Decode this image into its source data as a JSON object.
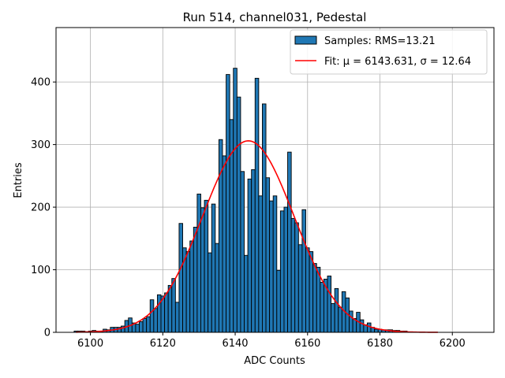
{
  "chart_data": {
    "type": "bar",
    "title": "Run 514, channel031, Pedestal",
    "xlabel": "ADC Counts",
    "ylabel": "Entries",
    "xlim": [
      6090.5,
      6211.5
    ],
    "ylim": [
      0,
      487
    ],
    "xticks": [
      6100,
      6120,
      6140,
      6160,
      6180,
      6200
    ],
    "yticks": [
      0,
      100,
      200,
      300,
      400
    ],
    "grid": true,
    "legend_position": "top-right",
    "bar_color": "#1f77b4",
    "fit_color": "#ff0000",
    "bin_width": 1,
    "series": [
      {
        "name": "Samples: RMS=13.21",
        "kind": "histogram",
        "bins": [
          6096,
          6097,
          6098,
          6099,
          6100,
          6101,
          6102,
          6103,
          6104,
          6105,
          6106,
          6107,
          6108,
          6109,
          6110,
          6111,
          6112,
          6113,
          6114,
          6115,
          6116,
          6117,
          6118,
          6119,
          6120,
          6121,
          6122,
          6123,
          6124,
          6125,
          6126,
          6127,
          6128,
          6129,
          6130,
          6131,
          6132,
          6133,
          6134,
          6135,
          6136,
          6137,
          6138,
          6139,
          6140,
          6141,
          6142,
          6143,
          6144,
          6145,
          6146,
          6147,
          6148,
          6149,
          6150,
          6151,
          6152,
          6153,
          6154,
          6155,
          6156,
          6157,
          6158,
          6159,
          6160,
          6161,
          6162,
          6163,
          6164,
          6165,
          6166,
          6167,
          6168,
          6169,
          6170,
          6171,
          6172,
          6173,
          6174,
          6175,
          6176,
          6177,
          6178,
          6179,
          6180,
          6181,
          6182,
          6183,
          6184,
          6185,
          6186,
          6187
        ],
        "values": [
          2,
          2,
          2,
          1,
          2,
          3,
          2,
          1,
          5,
          4,
          8,
          8,
          8,
          10,
          19,
          23,
          15,
          13,
          17,
          22,
          25,
          52,
          38,
          60,
          58,
          63,
          75,
          86,
          48,
          174,
          135,
          129,
          146,
          168,
          221,
          199,
          211,
          127,
          205,
          142,
          308,
          282,
          412,
          340,
          422,
          376,
          257,
          123,
          245,
          260,
          406,
          218,
          365,
          247,
          210,
          218,
          99,
          194,
          200,
          288,
          182,
          175,
          140,
          196,
          135,
          129,
          110,
          104,
          80,
          85,
          90,
          46,
          70,
          40,
          65,
          55,
          34,
          22,
          32,
          20,
          12,
          15,
          8,
          5,
          5,
          4,
          4,
          4,
          3,
          3,
          2,
          2
        ]
      },
      {
        "name": "Fit: μ = 6143.631, σ = 12.64",
        "kind": "gaussian",
        "mu": 6143.631,
        "sigma": 12.64,
        "amplitude": 306,
        "x_range": [
          6096,
          6196
        ]
      }
    ]
  }
}
